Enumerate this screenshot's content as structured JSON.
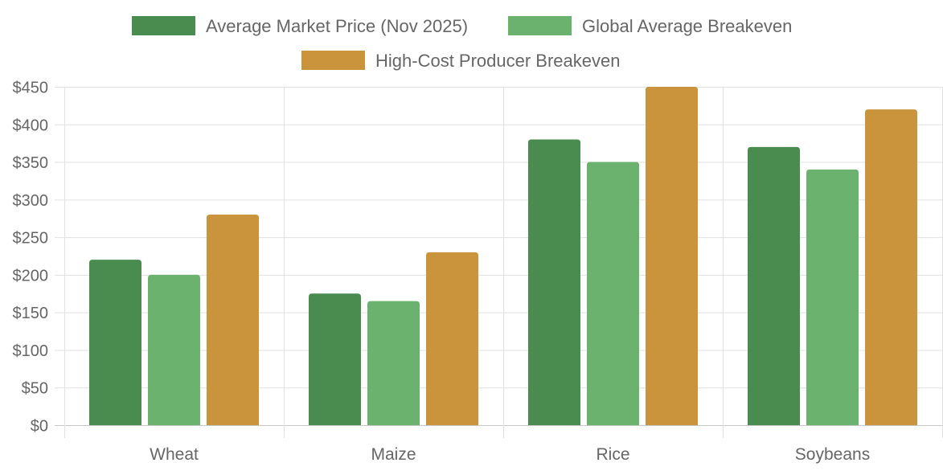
{
  "chart_data": {
    "type": "bar",
    "title": "",
    "xlabel": "",
    "ylabel": "",
    "categories": [
      "Wheat",
      "Maize",
      "Rice",
      "Soybeans"
    ],
    "series": [
      {
        "name": "Average Market Price (Nov 2025)",
        "color": "#4a8c4f",
        "values": [
          220,
          175,
          380,
          370
        ]
      },
      {
        "name": "Global Average Breakeven",
        "color": "#6bb26e",
        "values": [
          200,
          165,
          350,
          340
        ]
      },
      {
        "name": "High-Cost Producer Breakeven",
        "color": "#c9943b",
        "values": [
          280,
          230,
          450,
          420
        ]
      }
    ],
    "ylim": [
      0,
      450
    ],
    "yticks": [
      0,
      50,
      100,
      150,
      200,
      250,
      300,
      350,
      400,
      450
    ],
    "ytick_prefix": "$",
    "grid": true,
    "legend_position": "top-center"
  }
}
